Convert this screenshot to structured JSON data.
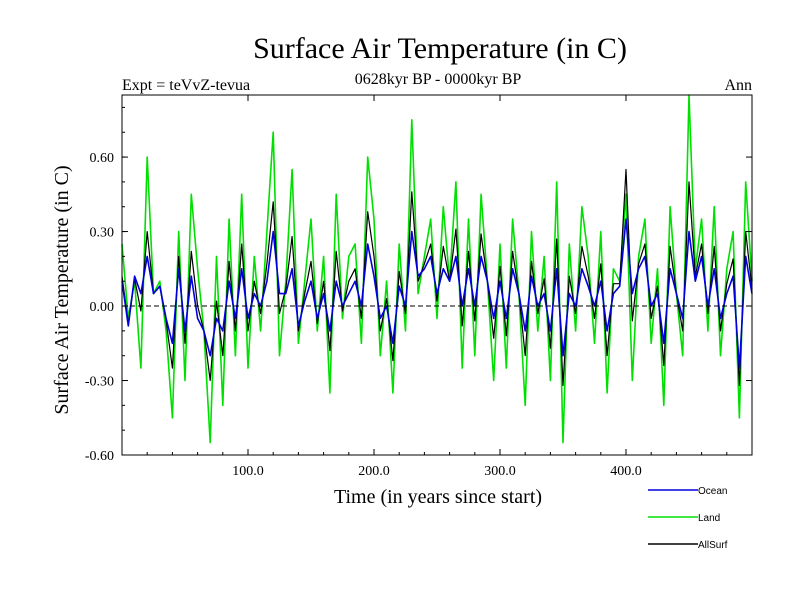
{
  "chart_data": {
    "type": "line",
    "title": "Surface Air Temperature (in C)",
    "subtitle": "0628kyr BP - 0000kyr BP",
    "left_label": "Expt = teVvZ-tevua",
    "right_label": "Ann",
    "xlabel": "Time (in years since start)",
    "ylabel": "Surface Air Temperature (in C)",
    "xlim": [
      0,
      500
    ],
    "ylim": [
      -0.6,
      0.85
    ],
    "xticks": [
      100,
      200,
      300,
      400
    ],
    "xtick_labels": [
      "100.0",
      "200.0",
      "300.0",
      "400.0"
    ],
    "yticks": [
      -0.6,
      -0.3,
      0.0,
      0.3,
      0.6
    ],
    "ytick_labels": [
      "-0.60",
      "-0.30",
      "0.00",
      "0.30",
      "0.60"
    ],
    "zero_line": true,
    "legend_position": "bottom-right",
    "series": [
      {
        "name": "Land",
        "color": "#00e000",
        "x": [
          0,
          5,
          10,
          15,
          20,
          25,
          30,
          35,
          40,
          45,
          50,
          55,
          60,
          65,
          70,
          75,
          80,
          85,
          90,
          95,
          100,
          105,
          110,
          115,
          120,
          125,
          130,
          135,
          140,
          145,
          150,
          155,
          160,
          165,
          170,
          175,
          180,
          185,
          190,
          195,
          200,
          205,
          210,
          215,
          220,
          225,
          230,
          235,
          240,
          245,
          250,
          255,
          260,
          265,
          270,
          275,
          280,
          285,
          290,
          295,
          300,
          305,
          310,
          315,
          320,
          325,
          330,
          335,
          340,
          345,
          350,
          355,
          360,
          365,
          370,
          375,
          380,
          385,
          390,
          395,
          400,
          405,
          410,
          415,
          420,
          425,
          430,
          435,
          440,
          445,
          450,
          455,
          460,
          465,
          470,
          475,
          480,
          485,
          490,
          495,
          500
        ],
        "values": [
          0.25,
          -0.05,
          0.1,
          -0.25,
          0.6,
          0.05,
          0.1,
          -0.1,
          -0.45,
          0.3,
          -0.3,
          0.45,
          0.15,
          -0.1,
          -0.55,
          0.2,
          -0.4,
          0.35,
          -0.2,
          0.45,
          -0.25,
          0.2,
          -0.1,
          0.3,
          0.7,
          -0.2,
          0.1,
          0.55,
          -0.15,
          0.1,
          0.35,
          -0.1,
          0.2,
          -0.35,
          0.45,
          -0.05,
          0.2,
          0.25,
          -0.15,
          0.6,
          0.35,
          -0.2,
          0.1,
          -0.35,
          0.25,
          -0.1,
          0.75,
          0.05,
          0.2,
          0.35,
          -0.05,
          0.4,
          0.1,
          0.5,
          -0.25,
          0.35,
          -0.2,
          0.45,
          0.1,
          -0.3,
          0.25,
          -0.25,
          0.35,
          0.05,
          -0.4,
          0.3,
          -0.1,
          0.2,
          -0.3,
          0.5,
          -0.55,
          0.25,
          -0.1,
          0.4,
          0.2,
          -0.15,
          0.3,
          -0.35,
          0.15,
          0.1,
          0.45,
          -0.3,
          0.2,
          0.35,
          -0.15,
          0.15,
          -0.4,
          0.4,
          0.05,
          -0.2,
          0.85,
          0.15,
          0.35,
          -0.1,
          0.4,
          -0.2,
          0.15,
          0.3,
          -0.45,
          0.5,
          0.1
        ]
      },
      {
        "name": "Ocean",
        "color": "#0000dd",
        "x": [
          0,
          5,
          10,
          15,
          20,
          25,
          30,
          35,
          40,
          45,
          50,
          55,
          60,
          65,
          70,
          75,
          80,
          85,
          90,
          95,
          100,
          105,
          110,
          115,
          120,
          125,
          130,
          135,
          140,
          145,
          150,
          155,
          160,
          165,
          170,
          175,
          180,
          185,
          190,
          195,
          200,
          205,
          210,
          215,
          220,
          225,
          230,
          235,
          240,
          245,
          250,
          255,
          260,
          265,
          270,
          275,
          280,
          285,
          290,
          295,
          300,
          305,
          310,
          315,
          320,
          325,
          330,
          335,
          340,
          345,
          350,
          355,
          360,
          365,
          370,
          375,
          380,
          385,
          390,
          395,
          400,
          405,
          410,
          415,
          420,
          425,
          430,
          435,
          440,
          445,
          450,
          455,
          460,
          465,
          470,
          475,
          480,
          485,
          490,
          495,
          500
        ],
        "values": [
          0.1,
          -0.08,
          0.12,
          0.05,
          0.2,
          0.05,
          0.08,
          -0.05,
          -0.15,
          0.15,
          -0.1,
          0.12,
          -0.05,
          -0.1,
          -0.2,
          -0.05,
          -0.1,
          0.1,
          -0.05,
          0.15,
          -0.05,
          0.05,
          0.0,
          0.1,
          0.3,
          0.05,
          0.05,
          0.15,
          -0.08,
          0.02,
          0.1,
          -0.05,
          0.05,
          -0.1,
          0.1,
          0.0,
          0.05,
          0.1,
          0.0,
          0.25,
          0.12,
          -0.05,
          0.0,
          -0.15,
          0.08,
          0.0,
          0.3,
          0.12,
          0.15,
          0.2,
          0.05,
          0.15,
          0.1,
          0.2,
          0.0,
          0.15,
          0.0,
          0.2,
          0.1,
          -0.05,
          0.1,
          -0.05,
          0.15,
          0.05,
          -0.1,
          0.12,
          0.0,
          0.05,
          -0.1,
          0.15,
          -0.2,
          0.05,
          0.0,
          0.15,
          0.08,
          0.0,
          0.1,
          -0.1,
          0.05,
          0.08,
          0.35,
          0.05,
          0.15,
          0.2,
          0.0,
          0.05,
          -0.15,
          0.15,
          0.05,
          -0.05,
          0.3,
          0.1,
          0.2,
          0.0,
          0.15,
          -0.05,
          0.05,
          0.12,
          -0.25,
          0.2,
          0.05
        ]
      },
      {
        "name": "AllSurf",
        "color": "#000000",
        "x": [
          0,
          5,
          10,
          15,
          20,
          25,
          30,
          35,
          40,
          45,
          50,
          55,
          60,
          65,
          70,
          75,
          80,
          85,
          90,
          95,
          100,
          105,
          110,
          115,
          120,
          125,
          130,
          135,
          140,
          145,
          150,
          155,
          160,
          165,
          170,
          175,
          180,
          185,
          190,
          195,
          200,
          205,
          210,
          215,
          220,
          225,
          230,
          235,
          240,
          245,
          250,
          255,
          260,
          265,
          270,
          275,
          280,
          285,
          290,
          295,
          300,
          305,
          310,
          315,
          320,
          325,
          330,
          335,
          340,
          345,
          350,
          355,
          360,
          365,
          370,
          375,
          380,
          385,
          390,
          395,
          400,
          405,
          410,
          415,
          420,
          425,
          430,
          435,
          440,
          445,
          450,
          455,
          460,
          465,
          470,
          475,
          480,
          485,
          490,
          495,
          500
        ],
        "values": [
          0.12,
          -0.07,
          0.11,
          -0.02,
          0.3,
          0.05,
          0.08,
          -0.06,
          -0.25,
          0.2,
          -0.15,
          0.22,
          0.0,
          -0.1,
          -0.3,
          0.02,
          -0.2,
          0.18,
          -0.1,
          0.25,
          -0.1,
          0.1,
          -0.03,
          0.17,
          0.42,
          -0.03,
          0.07,
          0.28,
          -0.1,
          0.05,
          0.18,
          -0.07,
          0.1,
          -0.18,
          0.22,
          -0.02,
          0.1,
          0.15,
          -0.05,
          0.38,
          0.2,
          -0.1,
          0.03,
          -0.22,
          0.14,
          -0.03,
          0.46,
          0.1,
          0.17,
          0.25,
          0.02,
          0.24,
          0.1,
          0.31,
          -0.08,
          0.22,
          -0.06,
          0.29,
          0.1,
          -0.13,
          0.16,
          -0.12,
          0.22,
          0.05,
          -0.2,
          0.18,
          -0.03,
          0.11,
          -0.17,
          0.27,
          -0.32,
          0.12,
          -0.03,
          0.24,
          0.12,
          -0.05,
          0.17,
          -0.2,
          0.09,
          0.09,
          0.55,
          -0.06,
          0.17,
          0.25,
          -0.05,
          0.08,
          -0.24,
          0.24,
          0.05,
          -0.1,
          0.5,
          0.12,
          0.25,
          -0.03,
          0.24,
          -0.1,
          0.09,
          0.19,
          -0.32,
          0.3,
          0.07
        ]
      }
    ]
  }
}
